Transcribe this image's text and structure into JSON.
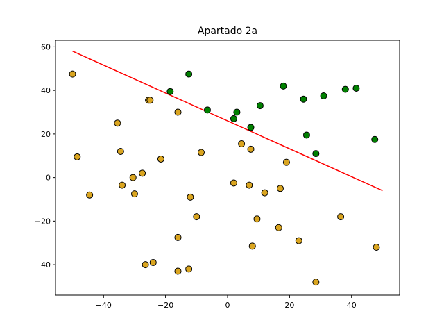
{
  "chart_data": {
    "type": "scatter",
    "title": "Apartado 2a",
    "xlabel": "",
    "ylabel": "",
    "xlim": [
      -55.5,
      55.5
    ],
    "ylim": [
      -54,
      63
    ],
    "xticks": [
      -40,
      -20,
      0,
      20,
      40
    ],
    "yticks": [
      -40,
      -20,
      0,
      20,
      40,
      60
    ],
    "grid": false,
    "colors": {
      "class_pos": "#008000",
      "class_neg": "#DAA520",
      "edge": "#000000",
      "line": "#ff0000"
    },
    "series": [
      {
        "color": "#008000",
        "points": [
          [
            -18.5,
            39.5
          ],
          [
            -12.5,
            47.5
          ],
          [
            -6.5,
            31
          ],
          [
            2,
            27
          ],
          [
            3,
            30
          ],
          [
            7.5,
            23
          ],
          [
            10.5,
            33
          ],
          [
            18,
            42
          ],
          [
            24.5,
            36
          ],
          [
            25.5,
            19.5
          ],
          [
            28.5,
            11
          ],
          [
            31,
            37.5
          ],
          [
            38,
            40.5
          ],
          [
            41.5,
            41
          ],
          [
            47.5,
            17.5
          ]
        ]
      },
      {
        "color": "#DAA520",
        "points": [
          [
            -50,
            47.5
          ],
          [
            -48.5,
            9.5
          ],
          [
            -44.5,
            -8
          ],
          [
            -35.5,
            25
          ],
          [
            -34.5,
            12
          ],
          [
            -34,
            -3.5
          ],
          [
            -30.5,
            0
          ],
          [
            -30,
            -7.5
          ],
          [
            -27.5,
            2
          ],
          [
            -26.5,
            -40
          ],
          [
            -25.5,
            35.5
          ],
          [
            -25,
            35.5
          ],
          [
            -24,
            -39
          ],
          [
            -21.5,
            8.5
          ],
          [
            -16,
            30
          ],
          [
            -16,
            -27.5
          ],
          [
            -16,
            -43
          ],
          [
            -12.5,
            -42
          ],
          [
            -12,
            -9
          ],
          [
            -10,
            -18
          ],
          [
            -8.5,
            11.5
          ],
          [
            2,
            -2.5
          ],
          [
            4.5,
            15.5
          ],
          [
            7,
            -3.5
          ],
          [
            7.5,
            13
          ],
          [
            8,
            -31.5
          ],
          [
            9.5,
            -19
          ],
          [
            12,
            -7
          ],
          [
            16.5,
            -23
          ],
          [
            17,
            -5
          ],
          [
            19,
            7
          ],
          [
            23,
            -29
          ],
          [
            28.5,
            -48
          ],
          [
            36.5,
            -18
          ],
          [
            48,
            -32
          ]
        ]
      }
    ],
    "line": {
      "x": [
        -50,
        50
      ],
      "y": [
        58,
        -6
      ]
    }
  }
}
